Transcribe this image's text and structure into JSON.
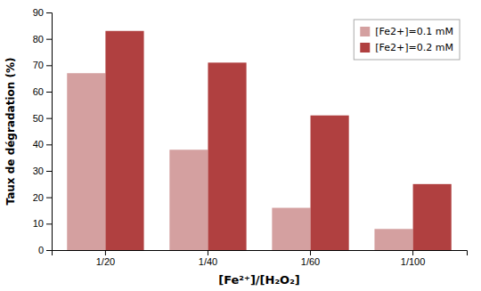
{
  "chart_data": {
    "type": "bar",
    "categories": [
      "1/20",
      "1/40",
      "1/60",
      "1/100"
    ],
    "series": [
      {
        "name": "[Fe2+]=0.1 mM",
        "color": "#d4a0a0",
        "values": [
          67,
          38,
          16,
          8
        ]
      },
      {
        "name": "[Fe2+]=0.2 mM",
        "color": "#b04040",
        "values": [
          83,
          71,
          51,
          25
        ]
      }
    ],
    "xlabel": "[Fe²⁺]/[H₂O₂]",
    "ylabel": "Taux de dégradation (%)",
    "ylim": [
      0,
      90
    ],
    "yticks": [
      0,
      10,
      20,
      30,
      40,
      50,
      60,
      70,
      80,
      90
    ],
    "grid": false,
    "legend": "upper right"
  }
}
